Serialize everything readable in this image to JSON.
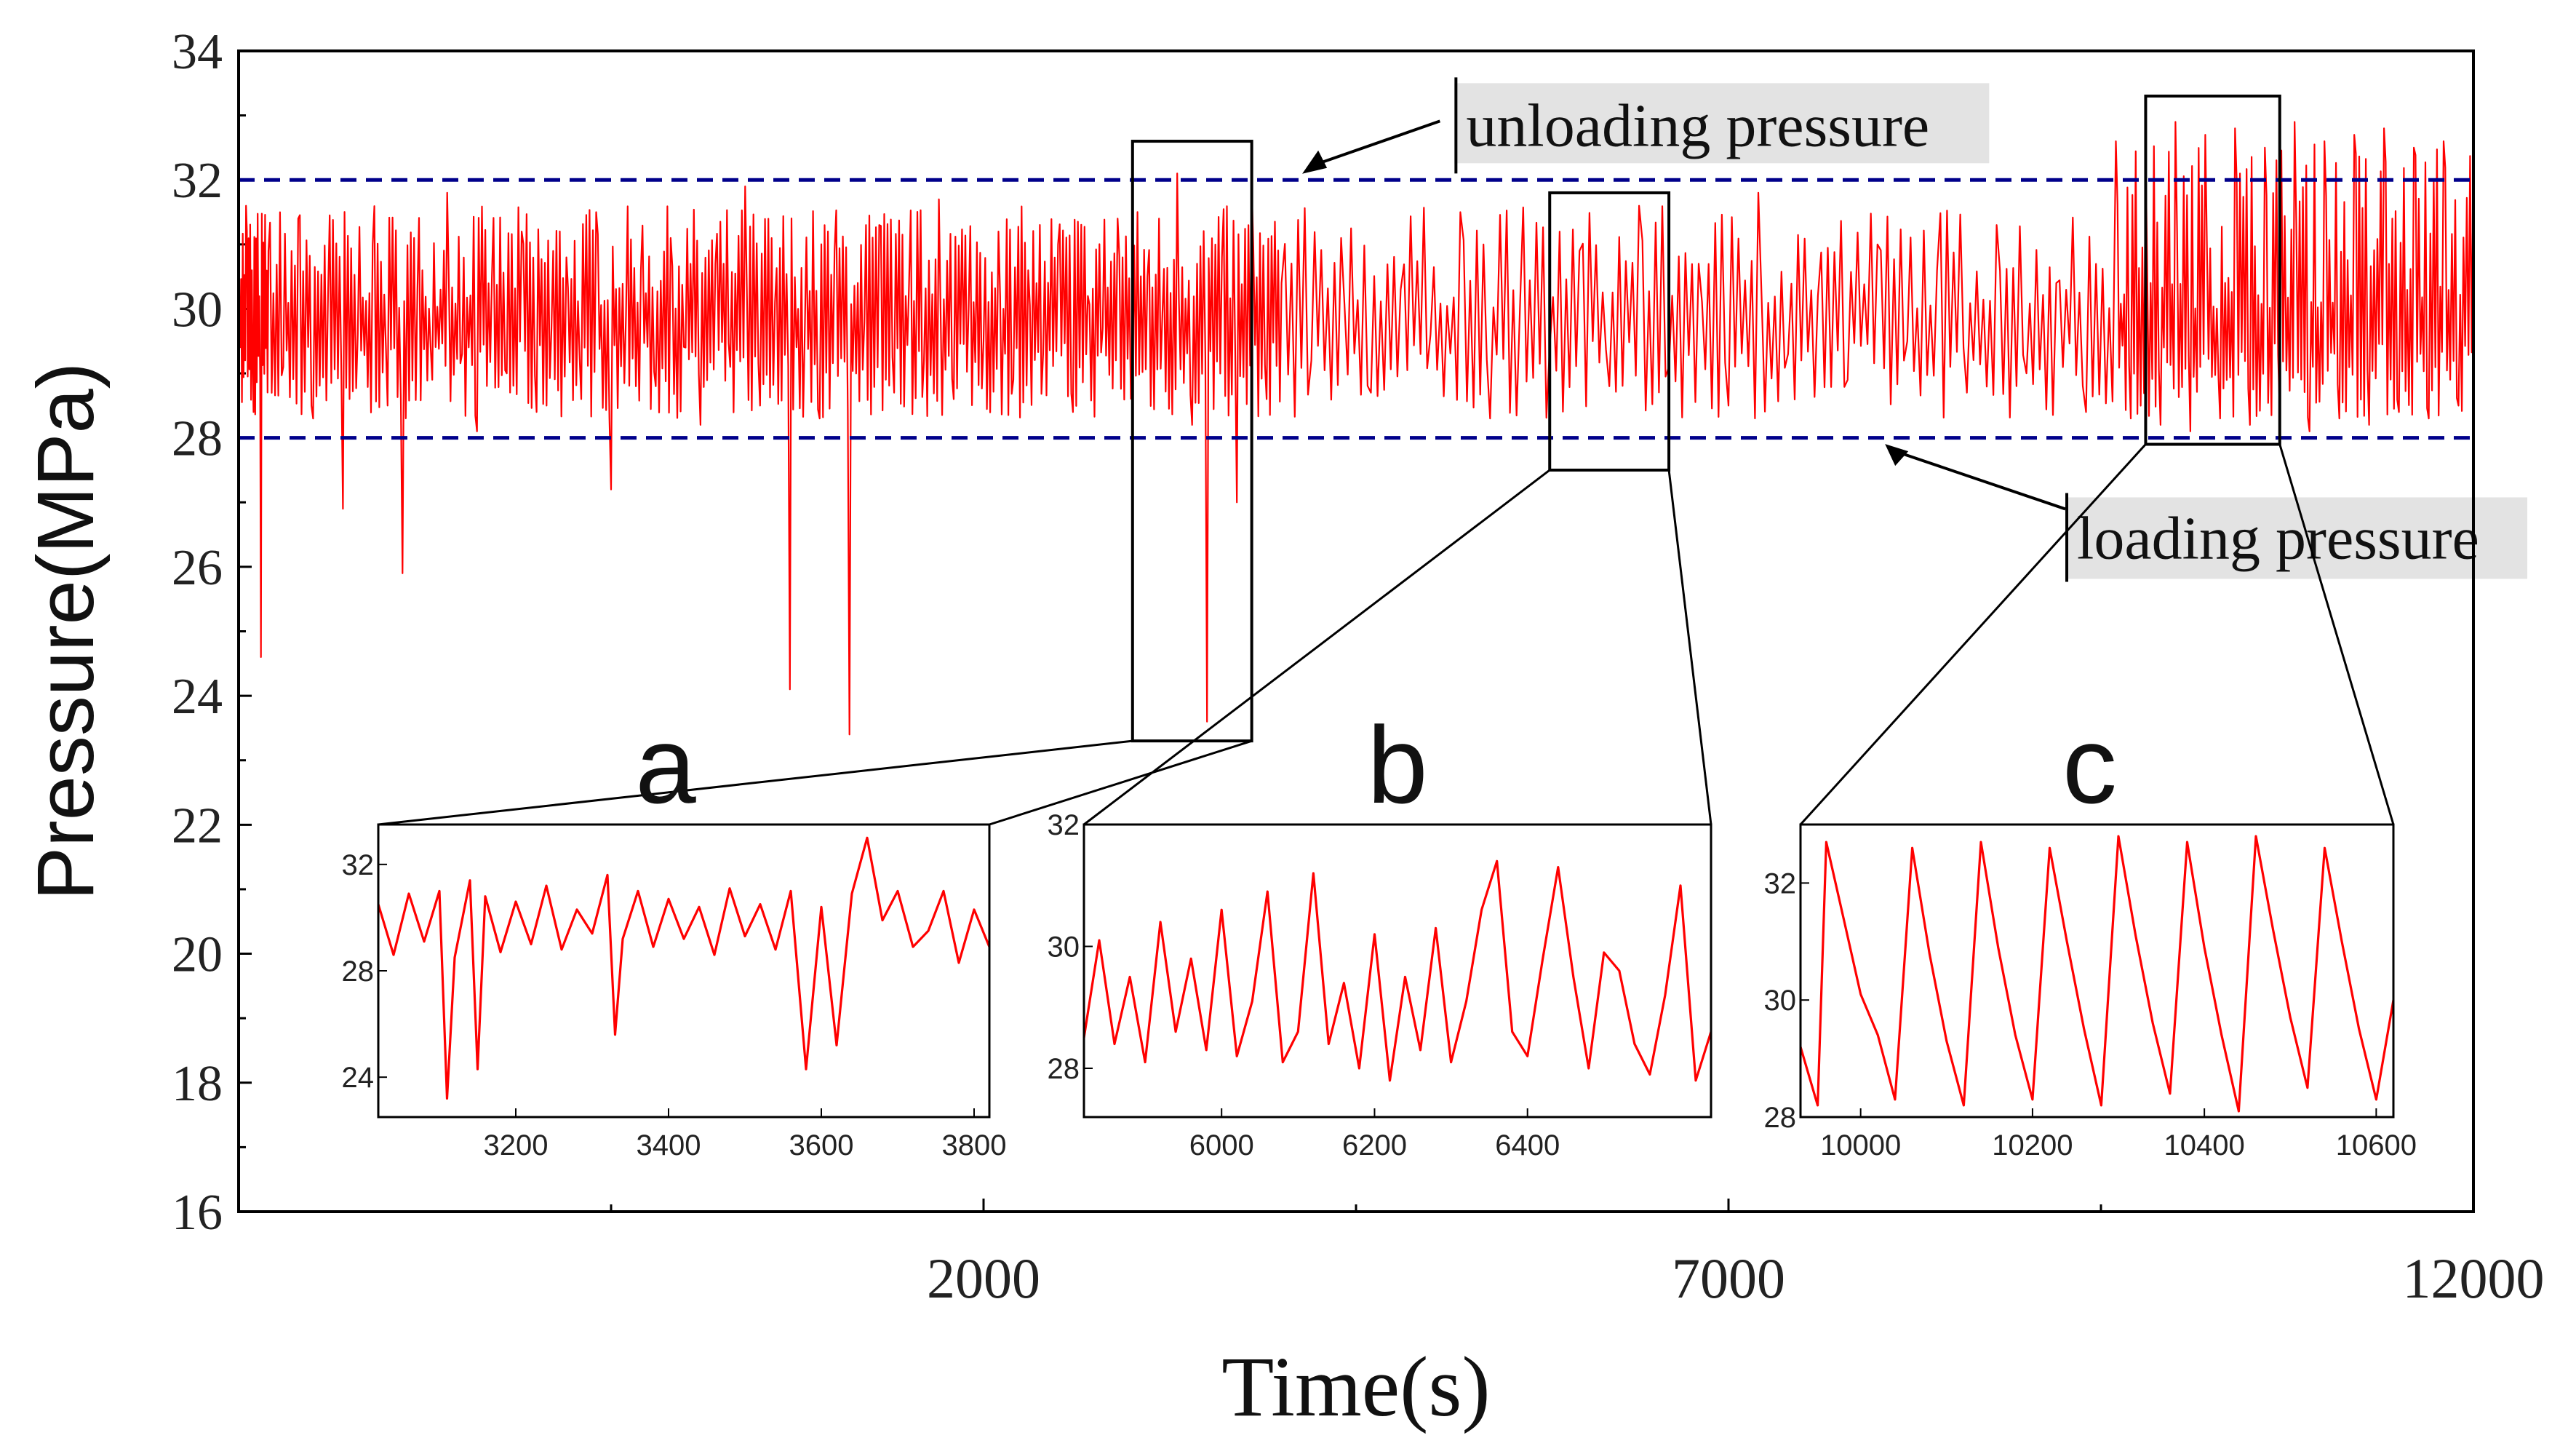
{
  "chart_data": {
    "type": "line",
    "title": "",
    "xlabel": "Time(s)",
    "ylabel": "Pressure(MPa)",
    "xlim": [
      -3000,
      12000
    ],
    "ylim": [
      16,
      34
    ],
    "x_ticks": [
      2000,
      7000,
      12000
    ],
    "x_tick_labels": [
      "2000",
      "7000",
      "12000"
    ],
    "y_ticks": [
      16,
      18,
      20,
      22,
      24,
      26,
      28,
      30,
      32,
      34
    ],
    "y_tick_labels": [
      "16",
      "18",
      "20",
      "22",
      "24",
      "26",
      "28",
      "30",
      "32",
      "34"
    ],
    "grid": false,
    "series": [
      {
        "name": "Pressure",
        "color": "#ff0000",
        "style": "line",
        "description": "Noisy pressure signal oscillating mostly between 28 and 32 MPa; spikes down to ~23.5 MPa near t=3500 s; regular sawtooth cycles near the end (t>10000 s)",
        "x": [
          -3000,
          -2950,
          -2900,
          -2850,
          -2800,
          -2700,
          -2600,
          -2500,
          -2400,
          -2300,
          -2200,
          -2100,
          -2000,
          -1900,
          -1800,
          -1700,
          -1600,
          -1500,
          -1400,
          -1300,
          -1200,
          -1100,
          -1000,
          -900,
          -800,
          -700,
          -600,
          -500,
          -400,
          -300,
          -200,
          -100,
          0,
          100,
          200,
          300,
          400,
          500,
          600,
          700,
          800,
          900,
          1000,
          1100,
          1200,
          1300,
          1400,
          1500,
          1600,
          1700,
          1800,
          1900,
          2000,
          2100,
          2200,
          2300,
          2400,
          2500,
          2600,
          2700,
          2800,
          2900,
          3000,
          3100,
          3200,
          3300,
          3400,
          3500,
          3600,
          3700,
          3800,
          3900,
          4000,
          4200,
          4400,
          4600,
          4800,
          5000,
          5200,
          5400,
          5600,
          5800,
          6000,
          6200,
          6400,
          6600,
          6800,
          7000,
          7200,
          7400,
          7600,
          7800,
          8000,
          8200,
          8400,
          8600,
          8800,
          9000,
          9200,
          9400,
          9600,
          9700,
          9800,
          9900,
          10000,
          10100,
          10200,
          10300,
          10400,
          10500,
          10600,
          10700,
          10800,
          10900,
          11000,
          11100,
          11200,
          11300,
          11400,
          11500,
          11600,
          11700,
          11800,
          11900,
          12000
        ],
        "y": [
          29.2,
          31.6,
          28.4,
          24.6,
          30.9,
          29.1,
          31.4,
          28.3,
          30.2,
          26.9,
          29.6,
          31.0,
          28.5,
          25.9,
          30.3,
          28.9,
          31.8,
          29.3,
          28.1,
          30.5,
          29.0,
          31.2,
          28.4,
          29.7,
          30.8,
          28.6,
          31.5,
          27.2,
          29.9,
          30.6,
          28.8,
          31.1,
          29.4,
          28.2,
          30.7,
          29.1,
          31.9,
          28.5,
          30.1,
          24.1,
          29.6,
          28.3,
          30.9,
          23.4,
          29.8,
          31.3,
          28.7,
          30.4,
          29.2,
          31.7,
          28.6,
          30.0,
          29.5,
          31.2,
          28.9,
          30.6,
          29.3,
          31.0,
          28.4,
          30.2,
          29.7,
          31.4,
          28.8,
          30.5,
          29.9,
          32.1,
          28.2,
          23.6,
          30.8,
          27.0,
          31.9,
          28.6,
          30.4,
          29.2,
          31.1,
          28.7,
          30.3,
          29.6,
          31.5,
          28.3,
          30.0,
          29.4,
          30.9,
          28.8,
          31.6,
          29.1,
          30.7,
          28.5,
          31.8,
          29.3,
          30.2,
          28.9,
          31.0,
          29.5,
          30.6,
          28.7,
          31.3,
          29.0,
          30.4,
          28.4,
          32.6,
          28.3,
          32.4,
          28.2,
          32.9,
          28.1,
          32.7,
          28.3,
          32.8,
          28.2,
          32.5,
          28.4,
          32.9,
          28.1,
          32.6,
          28.3,
          32.7,
          28.2,
          32.8,
          28.4,
          32.5,
          28.3,
          32.6,
          28.5,
          32.4
        ],
        "note": "Representative sampled points; rendered signal is a dense red trace"
      },
      {
        "name": "unloading pressure",
        "color": "#00008b",
        "style": "dashed",
        "y_constant": 32
      },
      {
        "name": "loading pressure",
        "color": "#00008b",
        "style": "dashed",
        "y_constant": 28
      }
    ],
    "annotations": [
      {
        "text": "unloading pressure",
        "x": 5200,
        "y": 32.8
      },
      {
        "text": "loading pressure",
        "x": 9300,
        "y": 26.4
      }
    ],
    "zoom_boxes": [
      {
        "label": "a",
        "x_range": [
          3000,
          3800
        ],
        "y_range": [
          23.3,
          32.6
        ]
      },
      {
        "label": "b",
        "x_range": [
          5800,
          6600
        ],
        "y_range": [
          27.5,
          31.8
        ]
      },
      {
        "label": "c",
        "x_range": [
          9800,
          10700
        ],
        "y_range": [
          27.9,
          33.3
        ]
      }
    ],
    "insets": [
      {
        "label": "a",
        "type": "line",
        "xlim": [
          3020,
          3820
        ],
        "ylim": [
          22.5,
          33.5
        ],
        "x_ticks": [
          3200,
          3400,
          3600,
          3800
        ],
        "x_tick_labels": [
          "3200",
          "3400",
          "3600",
          "3800"
        ],
        "y_ticks": [
          24,
          28,
          32
        ],
        "y_tick_labels": [
          "24",
          "28",
          "32"
        ],
        "x": [
          3020,
          3040,
          3060,
          3080,
          3100,
          3110,
          3120,
          3140,
          3150,
          3160,
          3180,
          3200,
          3220,
          3240,
          3260,
          3280,
          3300,
          3320,
          3330,
          3340,
          3360,
          3380,
          3400,
          3420,
          3440,
          3460,
          3480,
          3500,
          3520,
          3540,
          3560,
          3580,
          3600,
          3620,
          3640,
          3660,
          3680,
          3700,
          3720,
          3740,
          3760,
          3780,
          3800,
          3820
        ],
        "y": [
          30.5,
          28.6,
          30.9,
          29.1,
          31.0,
          23.2,
          28.5,
          31.4,
          24.3,
          30.8,
          28.7,
          30.6,
          29.0,
          31.2,
          28.8,
          30.3,
          29.4,
          31.6,
          25.6,
          29.2,
          31.0,
          28.9,
          30.7,
          29.2,
          30.4,
          28.6,
          31.1,
          29.3,
          30.5,
          28.8,
          31.0,
          24.3,
          30.4,
          25.2,
          30.9,
          33.0,
          29.9,
          31.0,
          28.9,
          29.5,
          31.0,
          28.3,
          30.3,
          28.9
        ]
      },
      {
        "label": "b",
        "type": "line",
        "xlim": [
          5820,
          6640
        ],
        "ylim": [
          27.2,
          32.0
        ],
        "x_ticks": [
          6000,
          6200,
          6400
        ],
        "x_tick_labels": [
          "6000",
          "6200",
          "6400"
        ],
        "y_ticks": [
          28,
          30,
          32
        ],
        "y_tick_labels": [
          "28",
          "30",
          "32"
        ],
        "x": [
          5820,
          5840,
          5860,
          5880,
          5900,
          5920,
          5940,
          5960,
          5980,
          6000,
          6020,
          6040,
          6060,
          6080,
          6100,
          6120,
          6140,
          6160,
          6180,
          6200,
          6220,
          6240,
          6260,
          6280,
          6300,
          6320,
          6340,
          6360,
          6380,
          6400,
          6420,
          6440,
          6460,
          6480,
          6500,
          6520,
          6540,
          6560,
          6580,
          6600,
          6620,
          6640
        ],
        "y": [
          28.5,
          30.1,
          28.4,
          29.5,
          28.1,
          30.4,
          28.6,
          29.8,
          28.3,
          30.6,
          28.2,
          29.1,
          30.9,
          28.1,
          28.6,
          31.2,
          28.4,
          29.4,
          28.0,
          30.2,
          27.8,
          29.5,
          28.3,
          30.3,
          28.1,
          29.1,
          30.6,
          31.4,
          28.6,
          28.2,
          29.8,
          31.3,
          29.5,
          28.0,
          29.9,
          29.6,
          28.4,
          27.9,
          29.2,
          31.0,
          27.8,
          28.6
        ]
      },
      {
        "label": "c",
        "type": "line",
        "xlim": [
          9930,
          10620
        ],
        "ylim": [
          28.0,
          33.0
        ],
        "x_ticks": [
          10000,
          10200,
          10400,
          10600
        ],
        "x_tick_labels": [
          "10000",
          "10200",
          "10400",
          "10600"
        ],
        "y_ticks": [
          28,
          30,
          32
        ],
        "y_tick_labels": [
          "28",
          "30",
          "32"
        ],
        "x": [
          9930,
          9950,
          9960,
          9980,
          10000,
          10020,
          10040,
          10060,
          10080,
          10100,
          10120,
          10140,
          10160,
          10180,
          10200,
          10220,
          10240,
          10260,
          10280,
          10300,
          10320,
          10340,
          10360,
          10380,
          10400,
          10420,
          10440,
          10460,
          10480,
          10500,
          10520,
          10540,
          10560,
          10580,
          10600,
          10620
        ],
        "y": [
          29.2,
          28.2,
          32.7,
          31.4,
          30.1,
          29.4,
          28.3,
          32.6,
          30.8,
          29.3,
          28.2,
          32.7,
          30.9,
          29.4,
          28.3,
          32.6,
          31.0,
          29.5,
          28.2,
          32.8,
          31.1,
          29.6,
          28.4,
          32.7,
          30.9,
          29.4,
          28.1,
          32.8,
          31.2,
          29.7,
          28.5,
          32.6,
          31.0,
          29.5,
          28.3,
          30.0
        ]
      }
    ]
  }
}
